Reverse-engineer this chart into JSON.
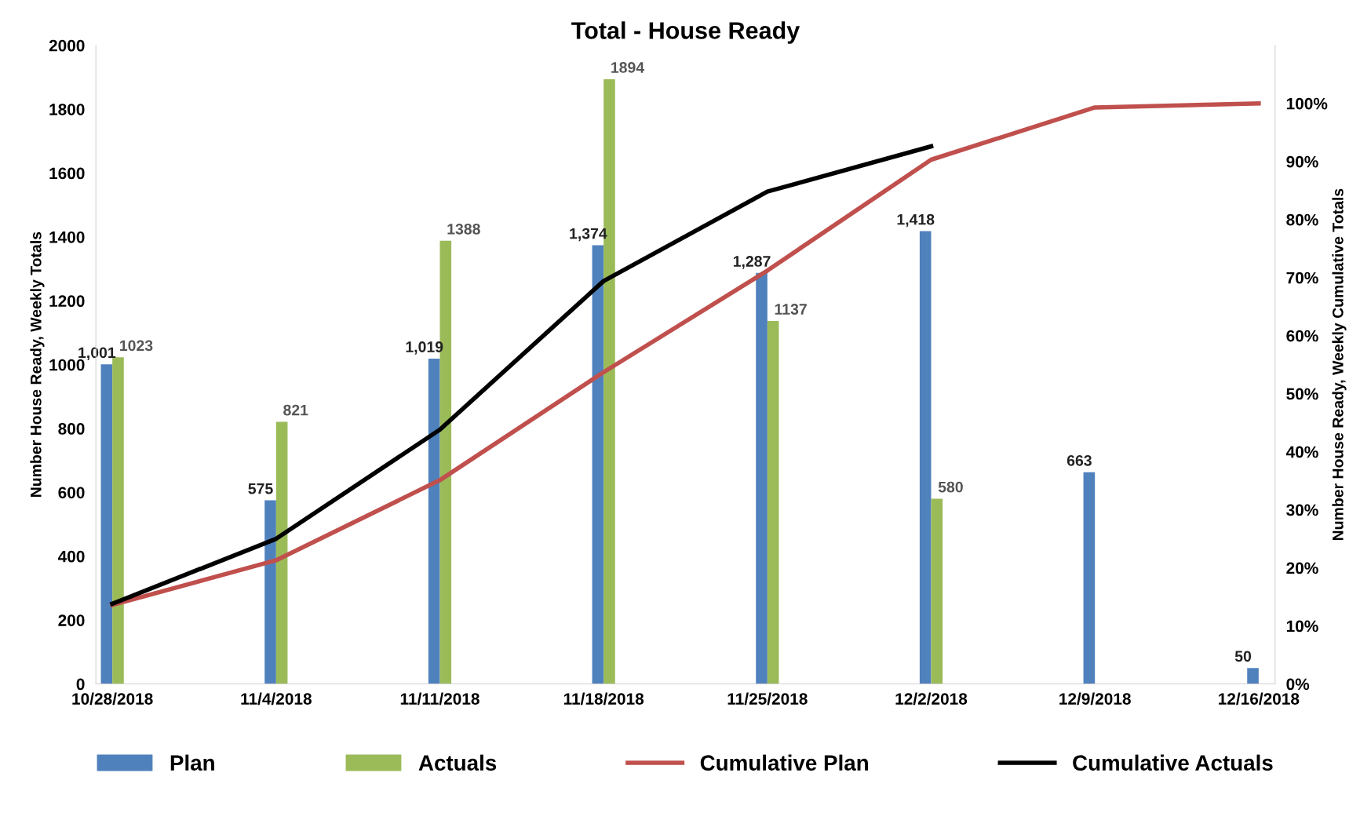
{
  "chart_data": {
    "type": "bar",
    "title": "Total - House Ready",
    "categories": [
      "10/28/2018",
      "11/4/2018",
      "11/11/2018",
      "11/18/2018",
      "11/25/2018",
      "12/2/2018",
      "12/9/2018",
      "12/16/2018"
    ],
    "series": [
      {
        "name": "Plan",
        "color": "#4f81bd",
        "values": [
          1001,
          575,
          1019,
          1374,
          1287,
          1418,
          663,
          50
        ],
        "value_labels": [
          "1,001",
          "575",
          "1,019",
          "1,374",
          "1,287",
          "1,418",
          "663",
          "50"
        ]
      },
      {
        "name": "Actuals",
        "color": "#9bbb59",
        "values": [
          1023,
          821,
          1388,
          1894,
          1137,
          580,
          null,
          null
        ],
        "value_labels": [
          "1023",
          "821",
          "1388",
          "1894",
          "1137",
          "580",
          null,
          null
        ]
      },
      {
        "name": "Cumulative Plan",
        "type": "line",
        "axis": "y2",
        "color": "#c0504d",
        "values": [
          13.6,
          21.3,
          35.1,
          53.7,
          71.2,
          90.3,
          99.3,
          100
        ]
      },
      {
        "name": "Cumulative Actuals",
        "type": "line",
        "axis": "y2",
        "color": "#000000",
        "values": [
          13.8,
          25.0,
          43.8,
          69.4,
          84.8,
          92.6,
          null,
          null
        ]
      }
    ],
    "ylabel": "Number House Ready, Weekly Totals",
    "y2label": "Number House Ready, Weekly Cumulative Totals",
    "ylim": [
      0,
      2000
    ],
    "yticks": [
      0,
      200,
      400,
      600,
      800,
      1000,
      1200,
      1400,
      1600,
      1800,
      2000
    ],
    "y2lim": [
      0,
      110
    ],
    "y2ticks": [
      {
        "value": 0,
        "label": "0%"
      },
      {
        "value": 10,
        "label": "10%"
      },
      {
        "value": 20,
        "label": "20%"
      },
      {
        "value": 30,
        "label": "30%"
      },
      {
        "value": 40,
        "label": "40%"
      },
      {
        "value": 50,
        "label": "50%"
      },
      {
        "value": 60,
        "label": "60%"
      },
      {
        "value": 70,
        "label": "70%"
      },
      {
        "value": 80,
        "label": "80%"
      },
      {
        "value": 90,
        "label": "90%"
      },
      {
        "value": 100,
        "label": "100%"
      }
    ],
    "grid": false,
    "legend": "bottom",
    "line_style": "solid",
    "marker": "none"
  }
}
